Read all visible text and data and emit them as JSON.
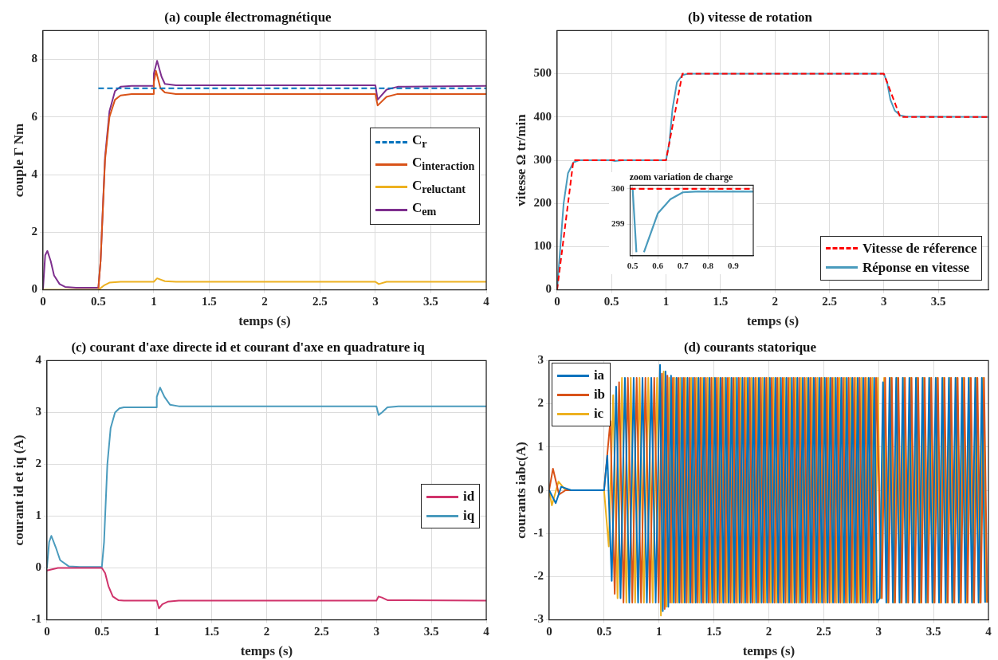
{
  "chart_data": [
    {
      "type": "line",
      "title": "(a) couple électromagnétique",
      "xlabel": "temps (s)",
      "ylabel": "couple Γ Nm",
      "xlim": [
        0,
        4
      ],
      "xticks": [
        0,
        0.5,
        1,
        1.5,
        2,
        2.5,
        3,
        3.5,
        4
      ],
      "ylim": [
        0,
        9
      ],
      "yticks": [
        0,
        2,
        4,
        6,
        8
      ],
      "grid": true,
      "legend": "right",
      "series": [
        {
          "name": "C$_{r}$",
          "color": "#0072bd",
          "line_style": "dashed",
          "x": [
            0.5,
            4
          ],
          "values": [
            7,
            7
          ]
        },
        {
          "name": "C$_{interaction}$",
          "color": "#d95319",
          "x": [
            0.5,
            0.52,
            0.56,
            0.6,
            0.65,
            0.7,
            0.8,
            1.0,
            1.0,
            1.02,
            1.06,
            1.1,
            1.2,
            3.0,
            3.02,
            3.1,
            3.2,
            4
          ],
          "values": [
            0.05,
            1,
            4.5,
            6.0,
            6.6,
            6.75,
            6.8,
            6.8,
            7.2,
            7.6,
            7.0,
            6.85,
            6.8,
            6.8,
            6.4,
            6.7,
            6.8,
            6.8
          ]
        },
        {
          "name": "C$_{reluctant}$",
          "color": "#edb120",
          "x": [
            0,
            0.5,
            0.55,
            0.6,
            0.7,
            1.0,
            1.03,
            1.1,
            1.2,
            3.0,
            3.03,
            3.1,
            4
          ],
          "values": [
            0,
            0,
            0.15,
            0.25,
            0.28,
            0.28,
            0.4,
            0.3,
            0.28,
            0.28,
            0.2,
            0.28,
            0.28
          ]
        },
        {
          "name": "C$_{em}$",
          "color": "#7e2f8e",
          "x": [
            0,
            0.02,
            0.04,
            0.07,
            0.1,
            0.15,
            0.2,
            0.3,
            0.5,
            0.52,
            0.56,
            0.6,
            0.65,
            0.7,
            0.8,
            1.0,
            1.0,
            1.03,
            1.07,
            1.1,
            1.2,
            3.0,
            3.02,
            3.1,
            3.2,
            4
          ],
          "values": [
            0,
            1.2,
            1.35,
            1.0,
            0.5,
            0.2,
            0.1,
            0.07,
            0.07,
            1,
            4.6,
            6.2,
            6.9,
            7.05,
            7.08,
            7.08,
            7.5,
            7.95,
            7.4,
            7.15,
            7.1,
            7.1,
            6.6,
            6.95,
            7.05,
            7.08
          ]
        }
      ]
    },
    {
      "type": "line",
      "title": "(b) vitesse de rotation",
      "xlabel": "temps (s)",
      "ylabel": "vitesse Ω tr/min",
      "xlim": [
        0,
        3.96
      ],
      "xticks": [
        0,
        0.5,
        1,
        1.5,
        2,
        2.5,
        3,
        3.5
      ],
      "ylim": [
        0,
        600
      ],
      "yticks": [
        0,
        100,
        200,
        300,
        400,
        500
      ],
      "grid": true,
      "legend": "bottom right",
      "series": [
        {
          "name": "Vitesse de réference",
          "color": "#ff0000",
          "line_style": "dashed",
          "x": [
            0,
            0.15,
            1,
            1.15,
            3,
            3.15,
            3.96
          ],
          "values": [
            0,
            300,
            300,
            500,
            500,
            400,
            400
          ]
        },
        {
          "name": "Réponse en vitesse",
          "color": "#4a9bbd",
          "x": [
            0,
            0.03,
            0.06,
            0.1,
            0.15,
            0.2,
            0.3,
            0.5,
            0.53,
            0.6,
            1.0,
            1.03,
            1.06,
            1.1,
            1.15,
            1.2,
            1.3,
            3.0,
            3.03,
            3.06,
            3.1,
            3.15,
            3.2,
            3.96
          ],
          "values": [
            0,
            100,
            200,
            270,
            295,
            300,
            300,
            300,
            298,
            300,
            300,
            340,
            420,
            480,
            497,
            500,
            500,
            500,
            480,
            440,
            415,
            404,
            401,
            400
          ]
        }
      ]
    },
    {
      "type": "line",
      "title": "zoom variation de charge",
      "xlim": [
        0.49,
        0.98
      ],
      "xticks": [
        0.5,
        0.6,
        0.7,
        0.8,
        0.9
      ],
      "ylim": [
        298.1,
        300.1
      ],
      "yticks": [
        299,
        300
      ],
      "grid": true,
      "series": [
        {
          "color": "#ff0000",
          "line_style": "dashed",
          "x": [
            0.49,
            0.98
          ],
          "values": [
            300,
            300
          ]
        },
        {
          "color": "#4a9bbd",
          "x": [
            0.49,
            0.5,
            0.515,
            0.53,
            0.545,
            0.6,
            0.65,
            0.7,
            0.75,
            0.98
          ],
          "values": [
            300,
            300,
            298.2,
            null,
            298.2,
            299.3,
            299.7,
            299.9,
            299.92,
            299.92
          ]
        }
      ]
    },
    {
      "type": "line",
      "title": "(c) courant d'axe directe id et courant d'axe en quadrature iq",
      "xlabel": "temps (s)",
      "ylabel": "courant id et iq (A)",
      "xlim": [
        0,
        4
      ],
      "xticks": [
        0,
        0.5,
        1,
        1.5,
        2,
        2.5,
        3,
        3.5,
        4
      ],
      "ylim": [
        -1,
        4
      ],
      "yticks": [
        -1,
        0,
        1,
        2,
        3,
        4
      ],
      "grid": true,
      "legend": "right",
      "series": [
        {
          "name": "id",
          "color": "#d0336b",
          "x": [
            0,
            0.1,
            0.5,
            0.53,
            0.56,
            0.6,
            0.65,
            0.7,
            1.0,
            1.02,
            1.05,
            1.1,
            1.2,
            3.0,
            3.02,
            3.05,
            3.1,
            4
          ],
          "values": [
            -0.05,
            0,
            0,
            -0.1,
            -0.35,
            -0.55,
            -0.62,
            -0.63,
            -0.63,
            -0.78,
            -0.7,
            -0.65,
            -0.63,
            -0.63,
            -0.55,
            -0.57,
            -0.62,
            -0.63
          ]
        },
        {
          "name": "iq",
          "color": "#4a9bbd",
          "x": [
            0,
            0.02,
            0.04,
            0.08,
            0.12,
            0.2,
            0.3,
            0.5,
            0.52,
            0.55,
            0.58,
            0.62,
            0.66,
            0.7,
            1.0,
            1.0,
            1.03,
            1.07,
            1.12,
            1.2,
            3.0,
            3.02,
            3.05,
            3.1,
            3.2,
            4
          ],
          "values": [
            0,
            0.5,
            0.62,
            0.4,
            0.15,
            0.03,
            0.02,
            0.02,
            0.5,
            2.0,
            2.7,
            3.0,
            3.08,
            3.1,
            3.1,
            3.3,
            3.48,
            3.3,
            3.15,
            3.12,
            3.12,
            2.95,
            3.0,
            3.1,
            3.12,
            3.12
          ]
        }
      ]
    },
    {
      "type": "line",
      "title": "(d) courants statorique",
      "xlabel": "temps (s)",
      "ylabel": "courants iabc(A)",
      "xlim": [
        0,
        4
      ],
      "xticks": [
        0,
        0.5,
        1,
        1.5,
        2,
        2.5,
        3,
        3.5,
        4
      ],
      "ylim": [
        -3,
        3
      ],
      "yticks": [
        -3,
        -2,
        -1,
        0,
        1,
        2,
        3
      ],
      "grid": true,
      "legend": "top left",
      "series": [
        {
          "name": "ia",
          "color": "#0072bd",
          "x": [
            0,
            0.06,
            0.11,
            0.2,
            0.5,
            0.53,
            0.57,
            0.61,
            0.65,
            0.69,
            0.73,
            0.77,
            0.81,
            0.85,
            0.89,
            0.93,
            0.97,
            1.01,
            1.035,
            1.06,
            1.085,
            1.11,
            1.135,
            1.16,
            1.185,
            1.21,
            1.235,
            1.26,
            1.285,
            1.31,
            1.335,
            1.36,
            1.385,
            1.41,
            1.435,
            1.46,
            1.485,
            1.51,
            1.535,
            1.56,
            1.585,
            1.61,
            1.635,
            1.66,
            1.685,
            1.71,
            1.735,
            1.76,
            1.785,
            1.81,
            1.835,
            1.86,
            1.885,
            1.91,
            1.935,
            1.96,
            1.985,
            2.01,
            2.035,
            2.06,
            2.085,
            2.11,
            2.135,
            2.16,
            2.185,
            2.21,
            2.235,
            2.26,
            2.285,
            2.31,
            2.335,
            2.36,
            2.385,
            2.41,
            2.435,
            2.46,
            2.485,
            2.51,
            2.535,
            2.56,
            2.585,
            2.61,
            2.635,
            2.66,
            2.685,
            2.71,
            2.735,
            2.76,
            2.785,
            2.81,
            2.835,
            2.86,
            2.885,
            2.91,
            2.935,
            2.96,
            2.985,
            3.01,
            3.04,
            3.07,
            3.1,
            3.13,
            3.16,
            3.19,
            3.22,
            3.25,
            3.28,
            3.31,
            3.34,
            3.37,
            3.4,
            3.43,
            3.46,
            3.49,
            3.52,
            3.55,
            3.58,
            3.61,
            3.64,
            3.67,
            3.7,
            3.73,
            3.76,
            3.79,
            3.82,
            3.85,
            3.88,
            3.91,
            3.94,
            3.97
          ],
          "values": [
            0,
            -0.3,
            0.08,
            0,
            0,
            0.8,
            -2.1,
            2.4,
            -2.5,
            2.6,
            -2.6,
            2.6,
            -2.6,
            2.6,
            -2.6,
            2.6,
            -2.6,
            2.9,
            -2.8,
            2.75,
            -2.7,
            2.65,
            -2.6,
            2.6,
            -2.6,
            2.6,
            -2.6,
            2.6,
            -2.6,
            2.6,
            -2.6,
            2.6,
            -2.6,
            2.6,
            -2.6,
            2.6,
            -2.6,
            2.6,
            -2.6,
            2.6,
            -2.6,
            2.6,
            -2.6,
            2.6,
            -2.6,
            2.6,
            -2.6,
            2.6,
            -2.6,
            2.6,
            -2.6,
            2.6,
            -2.6,
            2.6,
            -2.6,
            2.6,
            -2.6,
            2.6,
            -2.6,
            2.6,
            -2.6,
            2.6,
            -2.6,
            2.6,
            -2.6,
            2.6,
            -2.6,
            2.6,
            -2.6,
            2.6,
            -2.6,
            2.6,
            -2.6,
            2.6,
            -2.6,
            2.6,
            -2.6,
            2.6,
            -2.6,
            2.6,
            -2.6,
            2.6,
            -2.6,
            2.6,
            -2.6,
            2.6,
            -2.6,
            2.6,
            -2.6,
            2.6,
            -2.6,
            2.6,
            -2.6,
            2.6,
            -2.6,
            2.6,
            -2.6,
            -2.5,
            2.5,
            -2.6,
            2.6,
            -2.6,
            2.6,
            -2.6,
            2.6,
            -2.6,
            2.6,
            -2.6,
            2.6,
            -2.6,
            2.6,
            -2.6,
            2.6,
            -2.6,
            2.6,
            -2.6,
            2.6,
            -2.6,
            2.6,
            -2.6,
            2.6,
            -2.6,
            2.6,
            -2.6,
            2.6,
            -2.6,
            2.6,
            -2.6,
            2.6,
            -2.6
          ]
        },
        {
          "name": "ib",
          "color": "#d95319",
          "x": [
            0,
            0.035,
            0.09,
            0.15,
            0.5,
            0.557,
            0.597,
            0.637,
            0.677,
            0.717,
            0.757,
            0.797,
            0.837,
            0.877,
            0.917,
            0.957,
            0.997,
            1.027,
            1.052,
            1.077,
            1.102,
            1.127,
            1.152,
            1.177,
            1.202,
            1.227,
            1.252,
            1.277,
            1.302,
            1.327,
            1.352,
            1.377,
            1.402,
            1.427,
            1.452,
            1.477,
            1.502,
            1.527,
            1.552,
            1.577,
            1.602,
            1.627,
            1.652,
            1.677,
            1.702,
            1.727,
            1.752,
            1.777,
            1.802,
            1.827,
            1.852,
            1.877,
            1.902,
            1.927,
            1.952,
            1.977,
            2.002,
            2.027,
            2.052,
            2.077,
            2.102,
            2.127,
            2.152,
            2.177,
            2.202,
            2.227,
            2.252,
            2.277,
            2.302,
            2.327,
            2.352,
            2.377,
            2.402,
            2.427,
            2.452,
            2.477,
            2.502,
            2.527,
            2.552,
            2.577,
            2.602,
            2.627,
            2.652,
            2.677,
            2.702,
            2.727,
            2.752,
            2.777,
            2.802,
            2.827,
            2.852,
            2.877,
            2.902,
            2.927,
            2.952,
            2.977,
            3.03,
            3.06,
            3.09,
            3.12,
            3.15,
            3.18,
            3.21,
            3.24,
            3.27,
            3.3,
            3.33,
            3.36,
            3.39,
            3.42,
            3.45,
            3.48,
            3.51,
            3.54,
            3.57,
            3.6,
            3.63,
            3.66,
            3.69,
            3.72,
            3.75,
            3.78,
            3.81,
            3.84,
            3.87,
            3.9,
            3.93,
            3.96,
            3.99
          ],
          "values": [
            0,
            0.5,
            -0.1,
            0,
            0,
            1.6,
            -2.4,
            2.5,
            -2.6,
            2.6,
            -2.6,
            2.6,
            -2.6,
            2.6,
            -2.6,
            2.6,
            -2.6,
            2.7,
            -2.75,
            2.65,
            -2.6,
            2.6,
            -2.6,
            2.6,
            -2.6,
            2.6,
            -2.6,
            2.6,
            -2.6,
            2.6,
            -2.6,
            2.6,
            -2.6,
            2.6,
            -2.6,
            2.6,
            -2.6,
            2.6,
            -2.6,
            2.6,
            -2.6,
            2.6,
            -2.6,
            2.6,
            -2.6,
            2.6,
            -2.6,
            2.6,
            -2.6,
            2.6,
            -2.6,
            2.6,
            -2.6,
            2.6,
            -2.6,
            2.6,
            -2.6,
            2.6,
            -2.6,
            2.6,
            -2.6,
            2.6,
            -2.6,
            2.6,
            -2.6,
            2.6,
            -2.6,
            2.6,
            -2.6,
            2.6,
            -2.6,
            2.6,
            -2.6,
            2.6,
            -2.6,
            2.6,
            -2.6,
            2.6,
            -2.6,
            2.6,
            -2.6,
            2.6,
            -2.6,
            2.6,
            -2.6,
            2.6,
            -2.6,
            2.6,
            -2.6,
            2.6,
            -2.6,
            2.6,
            -2.6,
            2.6,
            -2.6,
            2.6,
            -2.5,
            2.6,
            -2.6,
            2.6,
            -2.6,
            2.6,
            -2.6,
            2.6,
            -2.6,
            2.6,
            -2.6,
            2.6,
            -2.6,
            2.6,
            -2.6,
            2.6,
            -2.6,
            2.6,
            -2.6,
            2.6,
            -2.6,
            2.6,
            -2.6,
            2.6,
            -2.6,
            2.6,
            -2.6,
            2.6,
            -2.6,
            2.6,
            -2.6,
            2.6,
            -2.6
          ]
        },
        {
          "name": "ic",
          "color": "#edb120",
          "x": [
            0,
            0.025,
            0.085,
            0.15,
            0.5,
            0.543,
            0.583,
            0.623,
            0.663,
            0.703,
            0.743,
            0.783,
            0.823,
            0.863,
            0.903,
            0.943,
            0.983,
            1.018,
            1.043,
            1.068,
            1.093,
            1.118,
            1.143,
            1.168,
            1.193,
            1.218,
            1.243,
            1.268,
            1.293,
            1.318,
            1.343,
            1.368,
            1.393,
            1.418,
            1.443,
            1.468,
            1.493,
            1.518,
            1.543,
            1.568,
            1.593,
            1.618,
            1.643,
            1.668,
            1.693,
            1.718,
            1.743,
            1.768,
            1.793,
            1.818,
            1.843,
            1.868,
            1.893,
            1.918,
            1.943,
            1.968,
            1.993,
            2.018,
            2.043,
            2.068,
            2.093,
            2.118,
            2.143,
            2.168,
            2.193,
            2.218,
            2.243,
            2.268,
            2.293,
            2.318,
            2.343,
            2.368,
            2.393,
            2.418,
            2.443,
            2.468,
            2.493,
            2.518,
            2.543,
            2.568,
            2.593,
            2.618,
            2.643,
            2.668,
            2.693,
            2.718,
            2.743,
            2.768,
            2.793,
            2.818,
            2.843,
            2.868,
            2.893,
            2.918,
            2.943,
            2.968,
            2.993,
            3.02,
            3.05,
            3.08,
            3.11,
            3.14,
            3.17,
            3.2,
            3.23,
            3.26,
            3.29,
            3.32,
            3.35,
            3.38,
            3.41,
            3.44,
            3.47,
            3.5,
            3.53,
            3.56,
            3.59,
            3.62,
            3.65,
            3.68,
            3.71,
            3.74,
            3.77,
            3.8,
            3.83,
            3.86,
            3.89,
            3.92,
            3.95,
            3.98
          ],
          "values": [
            0,
            -0.35,
            0.2,
            0,
            0,
            -1.3,
            2.2,
            -2.5,
            2.6,
            -2.6,
            2.6,
            -2.6,
            2.6,
            -2.6,
            2.6,
            -2.6,
            2.6,
            -2.9,
            2.75,
            -2.7,
            2.6,
            -2.6,
            2.6,
            -2.6,
            2.6,
            -2.6,
            2.6,
            -2.6,
            2.6,
            -2.6,
            2.6,
            -2.6,
            2.6,
            -2.6,
            2.6,
            -2.6,
            2.6,
            -2.6,
            2.6,
            -2.6,
            2.6,
            -2.6,
            2.6,
            -2.6,
            2.6,
            -2.6,
            2.6,
            -2.6,
            2.6,
            -2.6,
            2.6,
            -2.6,
            2.6,
            -2.6,
            2.6,
            -2.6,
            2.6,
            -2.6,
            2.6,
            -2.6,
            2.6,
            -2.6,
            2.6,
            -2.6,
            2.6,
            -2.6,
            2.6,
            -2.6,
            2.6,
            -2.6,
            2.6,
            -2.6,
            2.6,
            -2.6,
            2.6,
            -2.6,
            2.6,
            -2.6,
            2.6,
            -2.6,
            2.6,
            -2.6,
            2.6,
            -2.6,
            2.6,
            -2.6,
            2.6,
            -2.6,
            2.6,
            -2.6,
            2.6,
            -2.6,
            2.6,
            -2.6,
            2.6,
            -2.6,
            2.6,
            -2.5,
            2.6,
            -2.6,
            2.6,
            -2.6,
            2.6,
            -2.6,
            2.6,
            -2.6,
            2.6,
            -2.6,
            2.6,
            -2.6,
            2.6,
            -2.6,
            2.6,
            -2.6,
            2.6,
            -2.6,
            2.6,
            -2.6,
            2.6,
            -2.6,
            2.6,
            -2.6,
            2.6,
            -2.6,
            2.6,
            -2.6,
            2.6,
            -2.6,
            2.6,
            -2.6
          ]
        }
      ]
    }
  ]
}
